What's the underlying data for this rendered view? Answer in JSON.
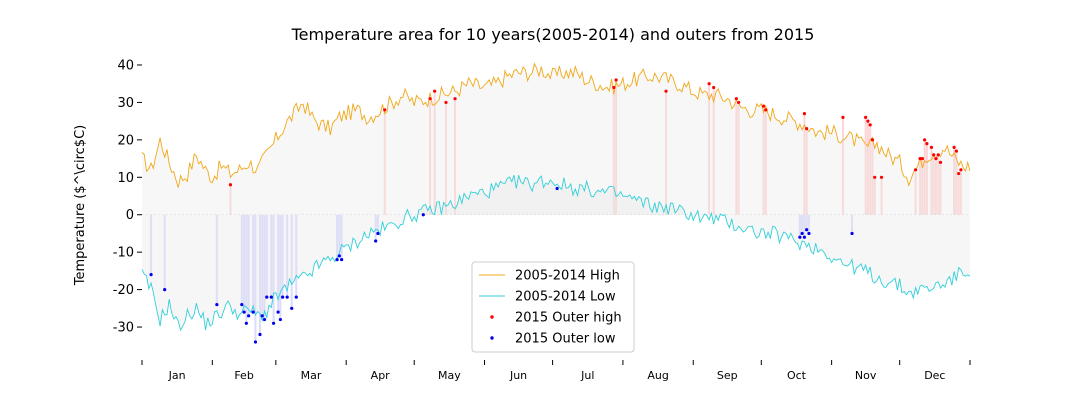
{
  "chart_data": {
    "type": "line",
    "title": "Temperature area for 10 years(2005-2014) and outers from 2015",
    "xlabel": "",
    "ylabel": "Temperature ($^\\circ$C)",
    "ylabel_display": "Temperature ($^\\circ$C)",
    "xlim": [
      0,
      365
    ],
    "ylim": [
      -38,
      44
    ],
    "y_ticks": [
      40,
      30,
      20,
      10,
      0,
      -10,
      -20,
      -30
    ],
    "month_labels": [
      "Jan",
      "Feb",
      "Mar",
      "Apr",
      "May",
      "Jun",
      "Jul",
      "Aug",
      "Sep",
      "Oct",
      "Nov",
      "Dec"
    ],
    "month_start_days": [
      0,
      31,
      59,
      90,
      120,
      151,
      181,
      212,
      243,
      273,
      304,
      334,
      365
    ],
    "colors": {
      "high_line": "#f0a818",
      "low_line": "#30d0d8",
      "high_fill": "#e9e9e9",
      "low_fill": "#e6e6e6",
      "outer_high": "#ff0000",
      "outer_low": "#0000ee",
      "high_bar": "#ffb0b0",
      "low_bar": "#b0b0ff"
    },
    "grid": false,
    "legend_position": "lower-center",
    "legend": [
      {
        "label": "2005-2014 High",
        "kind": "line",
        "color": "#f0a818"
      },
      {
        "label": "2005-2014 Low",
        "kind": "line",
        "color": "#30d0d8"
      },
      {
        "label": "2015 Outer high",
        "kind": "point",
        "color": "#ff0000"
      },
      {
        "label": "2015 Outer low",
        "kind": "point",
        "color": "#0000ee"
      }
    ],
    "series": [
      {
        "name": "2005-2014 High",
        "x": [
          0,
          4,
          8,
          12,
          16,
          20,
          24,
          28,
          31,
          35,
          39,
          43,
          47,
          51,
          55,
          59,
          63,
          67,
          71,
          75,
          79,
          83,
          87,
          90,
          95,
          100,
          105,
          110,
          115,
          120,
          126,
          132,
          138,
          144,
          151,
          156,
          161,
          166,
          171,
          176,
          181,
          186,
          191,
          196,
          201,
          206,
          212,
          217,
          222,
          227,
          232,
          237,
          243,
          248,
          253,
          258,
          263,
          268,
          273,
          278,
          283,
          288,
          293,
          298,
          304,
          309,
          314,
          319,
          324,
          329,
          334,
          338,
          342,
          346,
          350,
          354,
          358,
          362,
          365
        ],
        "values": [
          15,
          12,
          20,
          14,
          9,
          11,
          16,
          12,
          10,
          13,
          11,
          12,
          14,
          12,
          16,
          20,
          24,
          27,
          30,
          26,
          24,
          23,
          26,
          27,
          28,
          26,
          28,
          30,
          32,
          30,
          31,
          32,
          33,
          35,
          34,
          35,
          37,
          38,
          38,
          39,
          37,
          38,
          38,
          36,
          35,
          34,
          35,
          36,
          37,
          37,
          36,
          35,
          33,
          32,
          32,
          31,
          29,
          28,
          28,
          27,
          26,
          25,
          24,
          22,
          22,
          21,
          20,
          18,
          19,
          16,
          14,
          10,
          13,
          16,
          17,
          18,
          15,
          13,
          13
        ]
      },
      {
        "name": "2005-2014 Low",
        "x": [
          0,
          4,
          8,
          12,
          16,
          20,
          24,
          28,
          31,
          35,
          39,
          43,
          47,
          51,
          55,
          59,
          63,
          67,
          71,
          75,
          79,
          83,
          87,
          90,
          95,
          100,
          105,
          110,
          115,
          120,
          126,
          132,
          138,
          144,
          151,
          156,
          161,
          166,
          171,
          176,
          181,
          186,
          191,
          196,
          201,
          206,
          212,
          217,
          222,
          227,
          232,
          237,
          243,
          248,
          253,
          258,
          263,
          268,
          273,
          278,
          283,
          288,
          293,
          298,
          304,
          309,
          314,
          319,
          324,
          329,
          334,
          338,
          342,
          346,
          350,
          354,
          358,
          362,
          365
        ],
        "values": [
          -16,
          -20,
          -28,
          -24,
          -30,
          -27,
          -25,
          -29,
          -28,
          -26,
          -24,
          -27,
          -25,
          -27,
          -26,
          -22,
          -20,
          -18,
          -17,
          -15,
          -13,
          -12,
          -10,
          -9,
          -7,
          -5,
          -4,
          -3,
          -1,
          0,
          1,
          2,
          3,
          5,
          6,
          7,
          8,
          9,
          8,
          9,
          9,
          8,
          7,
          7,
          6,
          6,
          5,
          4,
          3,
          2,
          2,
          1,
          0,
          -1,
          -1,
          -2,
          -3,
          -4,
          -5,
          -5,
          -6,
          -7,
          -8,
          -9,
          -11,
          -13,
          -14,
          -15,
          -17,
          -18,
          -19,
          -21,
          -20,
          -20,
          -19,
          -18,
          -17,
          -15,
          -15
        ]
      }
    ],
    "outer_points": {
      "high": {
        "name": "2015 Outer high",
        "x": [
          39,
          107,
          127,
          129,
          134,
          138,
          208,
          209,
          231,
          250,
          252,
          262,
          263,
          274,
          275,
          292,
          293,
          309,
          319,
          320,
          321,
          322,
          323,
          326,
          341,
          343,
          344,
          345,
          346,
          348,
          349,
          350,
          351,
          352,
          358,
          359,
          360,
          361
        ],
        "values": [
          8,
          28,
          31,
          33,
          30,
          31,
          34,
          36,
          33,
          35,
          34,
          31,
          30,
          29,
          28,
          27,
          23,
          26,
          26,
          25,
          24,
          20,
          10,
          10,
          12,
          15,
          15,
          20,
          19,
          18,
          16,
          15,
          16,
          14,
          18,
          17,
          11,
          12
        ]
      },
      "low": {
        "name": "2015 Outer low",
        "x": [
          4,
          10,
          33,
          44,
          45,
          46,
          47,
          49,
          50,
          52,
          53,
          54,
          55,
          57,
          58,
          60,
          61,
          62,
          64,
          66,
          68,
          86,
          87,
          88,
          103,
          104,
          124,
          183,
          290,
          291,
          292,
          293,
          294,
          313
        ],
        "values": [
          -16,
          -20,
          -24,
          -24,
          -26,
          -29,
          -27,
          -26,
          -34,
          -32,
          -27,
          -28,
          -22,
          -22,
          -29,
          -26,
          -28,
          -22,
          -22,
          -25,
          -22,
          -12,
          -11,
          -12,
          -7,
          -5,
          0,
          7,
          -6,
          -5,
          -6,
          -4,
          -5,
          -5
        ]
      }
    }
  }
}
